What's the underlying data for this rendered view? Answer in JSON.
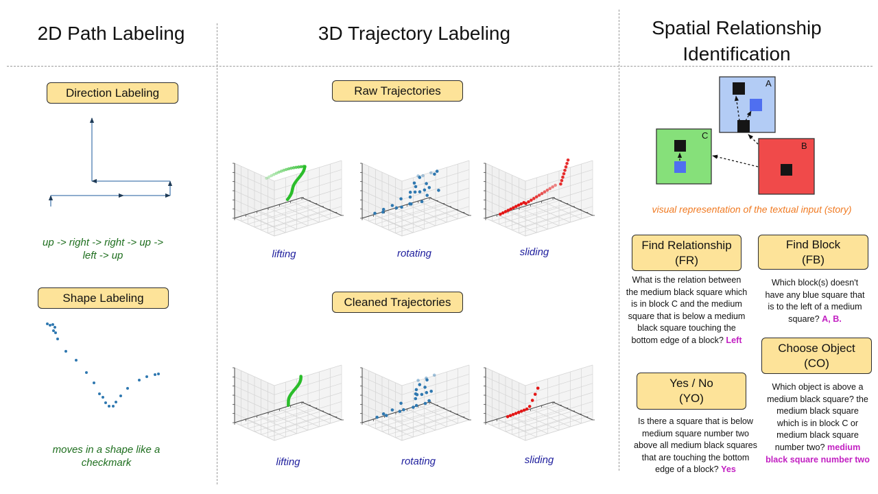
{
  "headers": {
    "path2d": "2D Path Labeling",
    "traj3d": "3D Trajectory Labeling",
    "spatial_line1": "Spatial Relationship",
    "spatial_line2": "Identification"
  },
  "path2d": {
    "direction_tag": "Direction Labeling",
    "direction_caption_line1": "up -> right -> right -> up ->",
    "direction_caption_line2": "left -> up",
    "shape_tag": "Shape Labeling",
    "shape_caption_line1": "moves in a shape like a",
    "shape_caption_line2": "checkmark"
  },
  "traj3d": {
    "raw_tag": "Raw Trajectories",
    "cleaned_tag": "Cleaned Trajectories",
    "raw_labels": [
      "lifting",
      "rotating",
      "sliding"
    ],
    "cleaned_labels": [
      "lifting",
      "rotating",
      "sliding"
    ]
  },
  "spatial": {
    "block_labels": {
      "a": "A",
      "b": "B",
      "c": "C"
    },
    "caption": "visual representation of the textual input (story)",
    "fr": {
      "tag_line1": "Find Relationship",
      "tag_line2": "(FR)",
      "q": [
        "What is the relation between",
        "the medium black square which",
        "is in block C and the medium",
        "square that is below a medium",
        "black square touching the",
        "bottom edge of a block?"
      ],
      "answer": "Left"
    },
    "fb": {
      "tag_line1": "Find Block",
      "tag_line2": "(FB)",
      "q": [
        "Which block(s) doesn't",
        "have any blue square that",
        "is to the left of a medium",
        "square?"
      ],
      "answer": "A, B."
    },
    "co": {
      "tag_line1": "Choose Object",
      "tag_line2": "(CO)",
      "q": [
        "Which object is above a",
        "medium black square? the",
        "medium black square",
        "which is in block C or",
        "medium black square",
        "number two?"
      ],
      "answer_line1": "medium",
      "answer_line2": "black square number two"
    },
    "yo": {
      "tag_line1": "Yes / No",
      "tag_line2": "(YO)",
      "q": [
        "Is there a square that is below",
        "medium square number two",
        "above all medium black squares",
        "that are touching the bottom",
        "edge of a block?"
      ],
      "answer": "Yes"
    }
  },
  "colors": {
    "tag_fill": "#fde399",
    "lifting": "#2bbd2b",
    "rotating": "#2f78b0",
    "sliding": "#e41616",
    "block_a": "#b3ccf5",
    "block_b": "#f04a4a",
    "block_c": "#86e07a",
    "blue_square": "#4f6ff0"
  }
}
